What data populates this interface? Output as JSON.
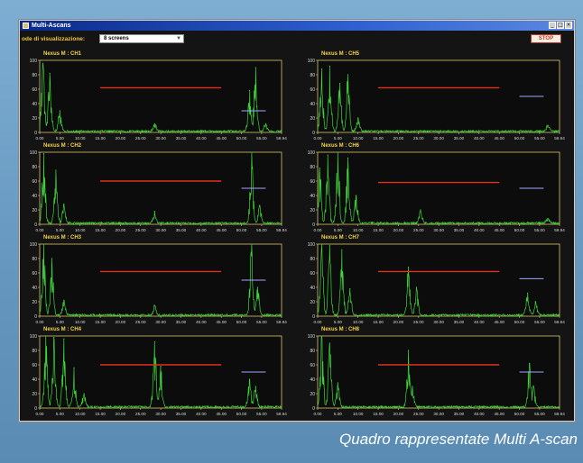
{
  "window": {
    "title": "Multi-Ascans",
    "controls": [
      "_",
      "□",
      "×"
    ]
  },
  "toolbar": {
    "mode_label": "ode di visualizzazione:",
    "mode_value": "8 screens",
    "stop_label": "STOP"
  },
  "caption": "Quadro rappresentate Multi A-scan",
  "axis": {
    "y_ticks": [
      "100",
      "80",
      "60",
      "40",
      "20",
      "0"
    ],
    "x_ticks": [
      "0.00",
      "5.00",
      "10.00",
      "15.00",
      "20.00",
      "25.00",
      "30.00",
      "35.00",
      "40.00",
      "45.00",
      "50.00",
      "55.00",
      "59.94"
    ]
  },
  "colors": {
    "trace": "#3fd23a",
    "gate": "#e0301e",
    "gate2": "#9ea8ff",
    "axis": "#d9c46a",
    "title": "#f2d24a"
  },
  "chart_data": [
    {
      "type": "line",
      "title": "Nexus M : CH1",
      "xlim": [
        0,
        59.94
      ],
      "ylim": [
        0,
        100
      ],
      "peaks": [
        [
          0.8,
          96
        ],
        [
          2.5,
          82
        ],
        [
          5,
          30
        ],
        [
          28.5,
          12
        ],
        [
          52,
          58
        ],
        [
          53.5,
          90
        ],
        [
          56,
          12
        ]
      ],
      "gate": {
        "x": [
          15,
          45
        ],
        "y": 62
      },
      "gate2": {
        "x": [
          50,
          56
        ],
        "y": 30
      }
    },
    {
      "type": "line",
      "title": "Nexus M : CH5",
      "xlim": [
        0,
        59.94
      ],
      "ylim": [
        0,
        100
      ],
      "peaks": [
        [
          1,
          88
        ],
        [
          3,
          92
        ],
        [
          5.5,
          68
        ],
        [
          7.5,
          80
        ],
        [
          10,
          20
        ],
        [
          57,
          10
        ]
      ],
      "gate": {
        "x": [
          15,
          45
        ],
        "y": 62
      },
      "gate2": {
        "x": [
          50,
          56
        ],
        "y": 50
      }
    },
    {
      "type": "line",
      "title": "Nexus M : CH2",
      "xlim": [
        0,
        59.94
      ],
      "ylim": [
        0,
        100
      ],
      "peaks": [
        [
          1,
          98
        ],
        [
          4,
          75
        ],
        [
          6,
          28
        ],
        [
          28.5,
          18
        ],
        [
          52.5,
          100
        ],
        [
          54.5,
          26
        ]
      ],
      "gate": {
        "x": [
          15,
          45
        ],
        "y": 60
      },
      "gate2": {
        "x": [
          50,
          56
        ],
        "y": 50
      }
    },
    {
      "type": "line",
      "title": "Nexus M : CH6",
      "xlim": [
        0,
        59.94
      ],
      "ylim": [
        0,
        100
      ],
      "peaks": [
        [
          0.5,
          78
        ],
        [
          2.5,
          96
        ],
        [
          5,
          100
        ],
        [
          7.5,
          92
        ],
        [
          9.5,
          40
        ],
        [
          25.5,
          20
        ],
        [
          57,
          8
        ]
      ],
      "gate": {
        "x": [
          15,
          45
        ],
        "y": 58
      },
      "gate2": {
        "x": [
          50,
          56
        ],
        "y": 50
      }
    },
    {
      "type": "line",
      "title": "Nexus M : CH3",
      "xlim": [
        0,
        59.94
      ],
      "ylim": [
        0,
        100
      ],
      "peaks": [
        [
          1,
          100
        ],
        [
          3,
          80
        ],
        [
          6,
          22
        ],
        [
          28.5,
          14
        ],
        [
          52.5,
          100
        ],
        [
          54,
          40
        ]
      ],
      "gate": {
        "x": [
          15,
          45
        ],
        "y": 62
      },
      "gate2": {
        "x": [
          50,
          56
        ],
        "y": 50
      }
    },
    {
      "type": "line",
      "title": "Nexus M : CH7",
      "xlim": [
        0,
        59.94
      ],
      "ylim": [
        0,
        100
      ],
      "peaks": [
        [
          1,
          100
        ],
        [
          3,
          98
        ],
        [
          6,
          92
        ],
        [
          8,
          38
        ],
        [
          22.5,
          68
        ],
        [
          24.5,
          40
        ],
        [
          52,
          32
        ],
        [
          54,
          20
        ]
      ],
      "gate": {
        "x": [
          15,
          45
        ],
        "y": 62
      },
      "gate2": {
        "x": [
          50,
          56
        ],
        "y": 52
      }
    },
    {
      "type": "line",
      "title": "Nexus M : CH4",
      "xlim": [
        0,
        59.94
      ],
      "ylim": [
        0,
        100
      ],
      "peaks": [
        [
          1.5,
          100
        ],
        [
          3.5,
          98
        ],
        [
          6,
          96
        ],
        [
          8.5,
          56
        ],
        [
          11,
          20
        ],
        [
          28.5,
          92
        ],
        [
          30,
          58
        ],
        [
          52,
          40
        ],
        [
          53.5,
          30
        ]
      ],
      "gate": {
        "x": [
          15,
          45
        ],
        "y": 60
      },
      "gate2": {
        "x": [
          50,
          56
        ],
        "y": 50
      }
    },
    {
      "type": "line",
      "title": "Nexus M : CH8",
      "xlim": [
        0,
        59.94
      ],
      "ylim": [
        0,
        100
      ],
      "peaks": [
        [
          1,
          100
        ],
        [
          3,
          90
        ],
        [
          5,
          35
        ],
        [
          22.5,
          80
        ],
        [
          23.5,
          30
        ],
        [
          52.5,
          62
        ],
        [
          53.5,
          30
        ]
      ],
      "gate": {
        "x": [
          15,
          45
        ],
        "y": 60
      },
      "gate2": {
        "x": [
          50,
          56
        ],
        "y": 50
      }
    }
  ]
}
